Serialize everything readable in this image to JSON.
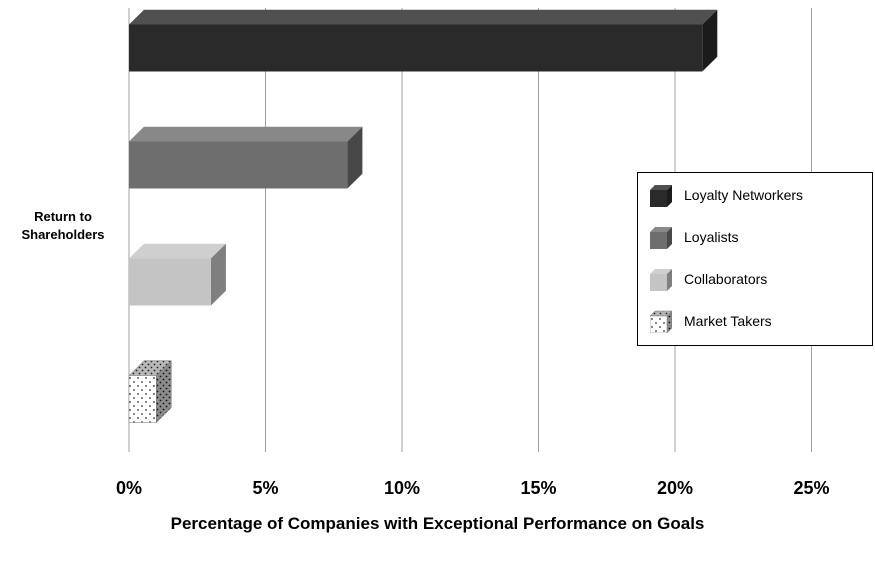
{
  "chart_data": {
    "type": "bar",
    "orientation": "horizontal",
    "categories": [
      "Return to\nShareholders"
    ],
    "series": [
      {
        "name": "Loyalty Networkers",
        "values": [
          21
        ],
        "color": "#2a2a2a",
        "pattern": "solid"
      },
      {
        "name": "Loyalists",
        "values": [
          8
        ],
        "color": "#6e6e6e",
        "pattern": "solid"
      },
      {
        "name": "Collaborators",
        "values": [
          3
        ],
        "color": "#c4c4c4",
        "pattern": "solid"
      },
      {
        "name": "Market Takers",
        "values": [
          1
        ],
        "color": "#ffffff",
        "pattern": "dotted"
      }
    ],
    "xlabel": "Percentage of Companies with Exceptional Performance on Goals",
    "xlim": [
      0,
      25
    ],
    "ticks": [
      "0%",
      "5%",
      "10%",
      "15%",
      "20%",
      "25%"
    ],
    "grid": true,
    "legend_position": "right",
    "style": "3d"
  }
}
